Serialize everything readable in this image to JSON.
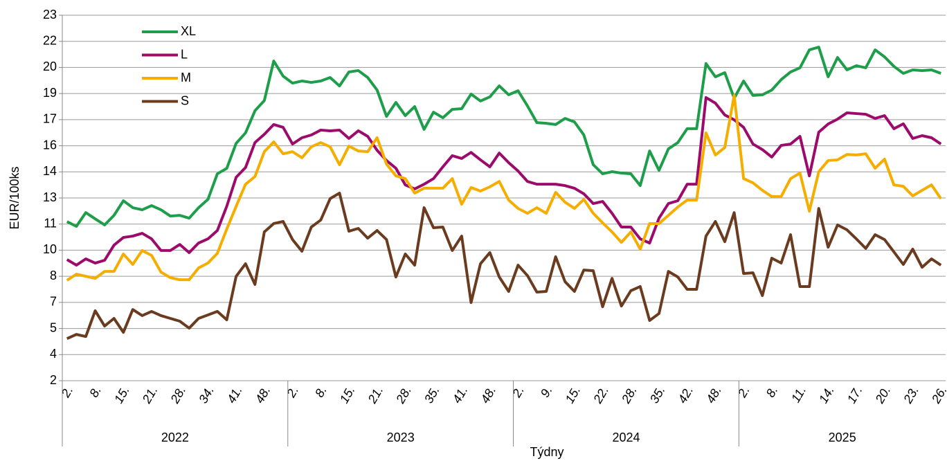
{
  "chart_data": {
    "type": "line",
    "y_label": "EUR/100ks",
    "x_label": "Týdny",
    "ylim": [
      2,
      23
    ],
    "yticks": [
      2,
      {
        "value": 3.5,
        "label": "4"
      },
      5,
      {
        "value": 6.5,
        "label": "7"
      },
      8,
      {
        "value": 9.5,
        "label": "10"
      },
      11,
      {
        "value": 12.5,
        "label": "13"
      },
      14,
      {
        "value": 15.5,
        "label": "16"
      },
      17,
      {
        "value": 18.5,
        "label": "19"
      },
      20,
      {
        "value": 21.5,
        "label": "22"
      },
      23
    ],
    "grid": true,
    "legend": "top-left",
    "categories": [
      "2.",
      null,
      null,
      "8.",
      null,
      null,
      "15.",
      null,
      null,
      "21.",
      null,
      null,
      "28.",
      null,
      null,
      "34.",
      null,
      null,
      "41.",
      null,
      null,
      "48.",
      null,
      null,
      "2.",
      null,
      null,
      "8.",
      null,
      null,
      "15.",
      null,
      null,
      "21.",
      null,
      null,
      "28.",
      null,
      null,
      "35.",
      null,
      null,
      "41.",
      null,
      null,
      "48.",
      null,
      null,
      "2.",
      null,
      null,
      "9.",
      null,
      null,
      "15.",
      null,
      null,
      "22.",
      null,
      null,
      "28.",
      null,
      null,
      "35.",
      null,
      null,
      "42.",
      null,
      null,
      "48.",
      null,
      null,
      "2.",
      null,
      null,
      "8.",
      null,
      null,
      "11.",
      null,
      null,
      "14.",
      null,
      null,
      "17.",
      null,
      null,
      "20.",
      null,
      null,
      "23.",
      null,
      null,
      "26."
    ],
    "x_groups": [
      {
        "label": "2022",
        "count": 24
      },
      {
        "label": "2023",
        "count": 24
      },
      {
        "label": "2024",
        "count": 24
      },
      {
        "label": "2025",
        "count": 22
      }
    ],
    "series": [
      {
        "name": "XL",
        "color": "#1e9e4a",
        "values": [
          11.14,
          10.87,
          11.66,
          11.3,
          10.95,
          11.5,
          12.34,
          11.94,
          11.82,
          12.06,
          11.82,
          11.46,
          11.5,
          11.34,
          11.94,
          12.42,
          13.89,
          14.2,
          15.64,
          16.24,
          17.51,
          18.1,
          20.37,
          19.5,
          19.1,
          19.22,
          19.14,
          19.22,
          19.42,
          18.94,
          19.74,
          19.82,
          19.42,
          18.7,
          17.19,
          17.99,
          17.23,
          17.75,
          16.44,
          17.43,
          17.11,
          17.59,
          17.63,
          18.47,
          18.07,
          18.31,
          18.94,
          18.43,
          18.66,
          17.79,
          16.83,
          16.79,
          16.72,
          17.07,
          16.87,
          16.12,
          14.41,
          13.89,
          14.01,
          13.93,
          13.89,
          13.21,
          15.2,
          14.09,
          15.32,
          15.68,
          16.48,
          16.48,
          20.22,
          19.46,
          19.7,
          18.23,
          19.22,
          18.39,
          18.43,
          18.7,
          19.3,
          19.74,
          19.98,
          21.01,
          21.17,
          19.46,
          20.57,
          19.86,
          20.1,
          19.98,
          21.01,
          20.61,
          20.06,
          19.66,
          19.86,
          19.82,
          19.86,
          19.66
        ]
      },
      {
        "name": "L",
        "color": "#9c0a6c",
        "values": [
          8.96,
          8.64,
          9.0,
          8.76,
          8.92,
          9.79,
          10.23,
          10.31,
          10.47,
          10.15,
          9.48,
          9.48,
          9.83,
          9.36,
          9.91,
          10.15,
          10.63,
          12.02,
          13.69,
          14.25,
          15.68,
          16.16,
          16.72,
          16.56,
          15.6,
          15.96,
          16.12,
          16.4,
          16.36,
          16.4,
          15.92,
          16.36,
          16.04,
          15.24,
          14.65,
          14.21,
          13.25,
          13.02,
          13.29,
          13.61,
          14.29,
          14.93,
          14.77,
          15.12,
          14.69,
          14.29,
          15.08,
          14.53,
          14.05,
          13.45,
          13.29,
          13.29,
          13.29,
          13.21,
          13.06,
          12.74,
          12.18,
          12.3,
          11.62,
          10.83,
          10.83,
          10.15,
          9.91,
          11.34,
          12.18,
          12.34,
          13.29,
          13.29,
          18.27,
          17.95,
          17.27,
          16.99,
          16.56,
          15.6,
          15.28,
          14.85,
          15.52,
          15.6,
          16.04,
          13.77,
          16.28,
          16.75,
          17.03,
          17.39,
          17.35,
          17.31,
          17.07,
          17.23,
          16.48,
          16.76,
          15.92,
          16.08,
          15.96,
          15.6
        ]
      },
      {
        "name": "M",
        "color": "#f5ae00",
        "values": [
          7.77,
          8.12,
          8.0,
          7.88,
          8.28,
          8.28,
          9.28,
          8.68,
          9.48,
          9.2,
          8.24,
          7.92,
          7.8,
          7.8,
          8.48,
          8.76,
          9.32,
          10.71,
          12.02,
          13.29,
          13.73,
          15.16,
          15.72,
          15.04,
          15.16,
          14.81,
          15.44,
          15.68,
          15.44,
          14.41,
          15.48,
          15.2,
          15.16,
          15.96,
          14.45,
          13.77,
          13.61,
          12.78,
          13.06,
          13.06,
          13.06,
          13.61,
          12.14,
          13.1,
          12.9,
          13.14,
          13.45,
          12.38,
          11.9,
          11.62,
          11.94,
          11.62,
          12.82,
          12.26,
          11.9,
          12.42,
          11.62,
          11.07,
          10.55,
          9.95,
          10.55,
          9.56,
          11.03,
          11.03,
          11.5,
          11.98,
          12.38,
          12.38,
          16.24,
          14.97,
          15.4,
          18.39,
          13.61,
          13.37,
          12.94,
          12.58,
          12.58,
          13.61,
          13.93,
          11.74,
          14.01,
          14.65,
          14.69,
          15.0,
          14.97,
          15.04,
          14.21,
          14.73,
          13.25,
          13.17,
          12.62,
          12.94,
          13.25,
          12.46
        ]
      },
      {
        "name": "S",
        "color": "#6b3b20",
        "values": [
          4.42,
          4.66,
          4.54,
          6.02,
          5.14,
          5.58,
          4.78,
          6.09,
          5.74,
          5.98,
          5.74,
          5.58,
          5.42,
          5.02,
          5.58,
          5.78,
          5.98,
          5.5,
          8.0,
          8.72,
          7.53,
          10.55,
          11.03,
          11.15,
          10.11,
          9.44,
          10.83,
          11.23,
          12.46,
          12.78,
          10.59,
          10.75,
          10.19,
          10.63,
          10.11,
          7.96,
          9.28,
          8.64,
          11.94,
          10.79,
          10.83,
          9.48,
          10.31,
          6.49,
          8.72,
          9.36,
          7.96,
          7.13,
          8.64,
          8.04,
          7.09,
          7.13,
          9.12,
          7.69,
          7.13,
          8.36,
          8.32,
          6.25,
          7.88,
          6.29,
          7.17,
          7.41,
          5.46,
          5.86,
          8.28,
          7.96,
          7.25,
          7.25,
          10.31,
          11.15,
          9.99,
          11.66,
          8.16,
          8.2,
          6.89,
          9.04,
          8.76,
          10.39,
          7.41,
          7.41,
          11.9,
          9.67,
          10.95,
          10.67,
          10.15,
          9.6,
          10.39,
          10.11,
          9.4,
          8.68,
          9.56,
          8.52,
          9.0,
          8.64
        ]
      }
    ]
  }
}
